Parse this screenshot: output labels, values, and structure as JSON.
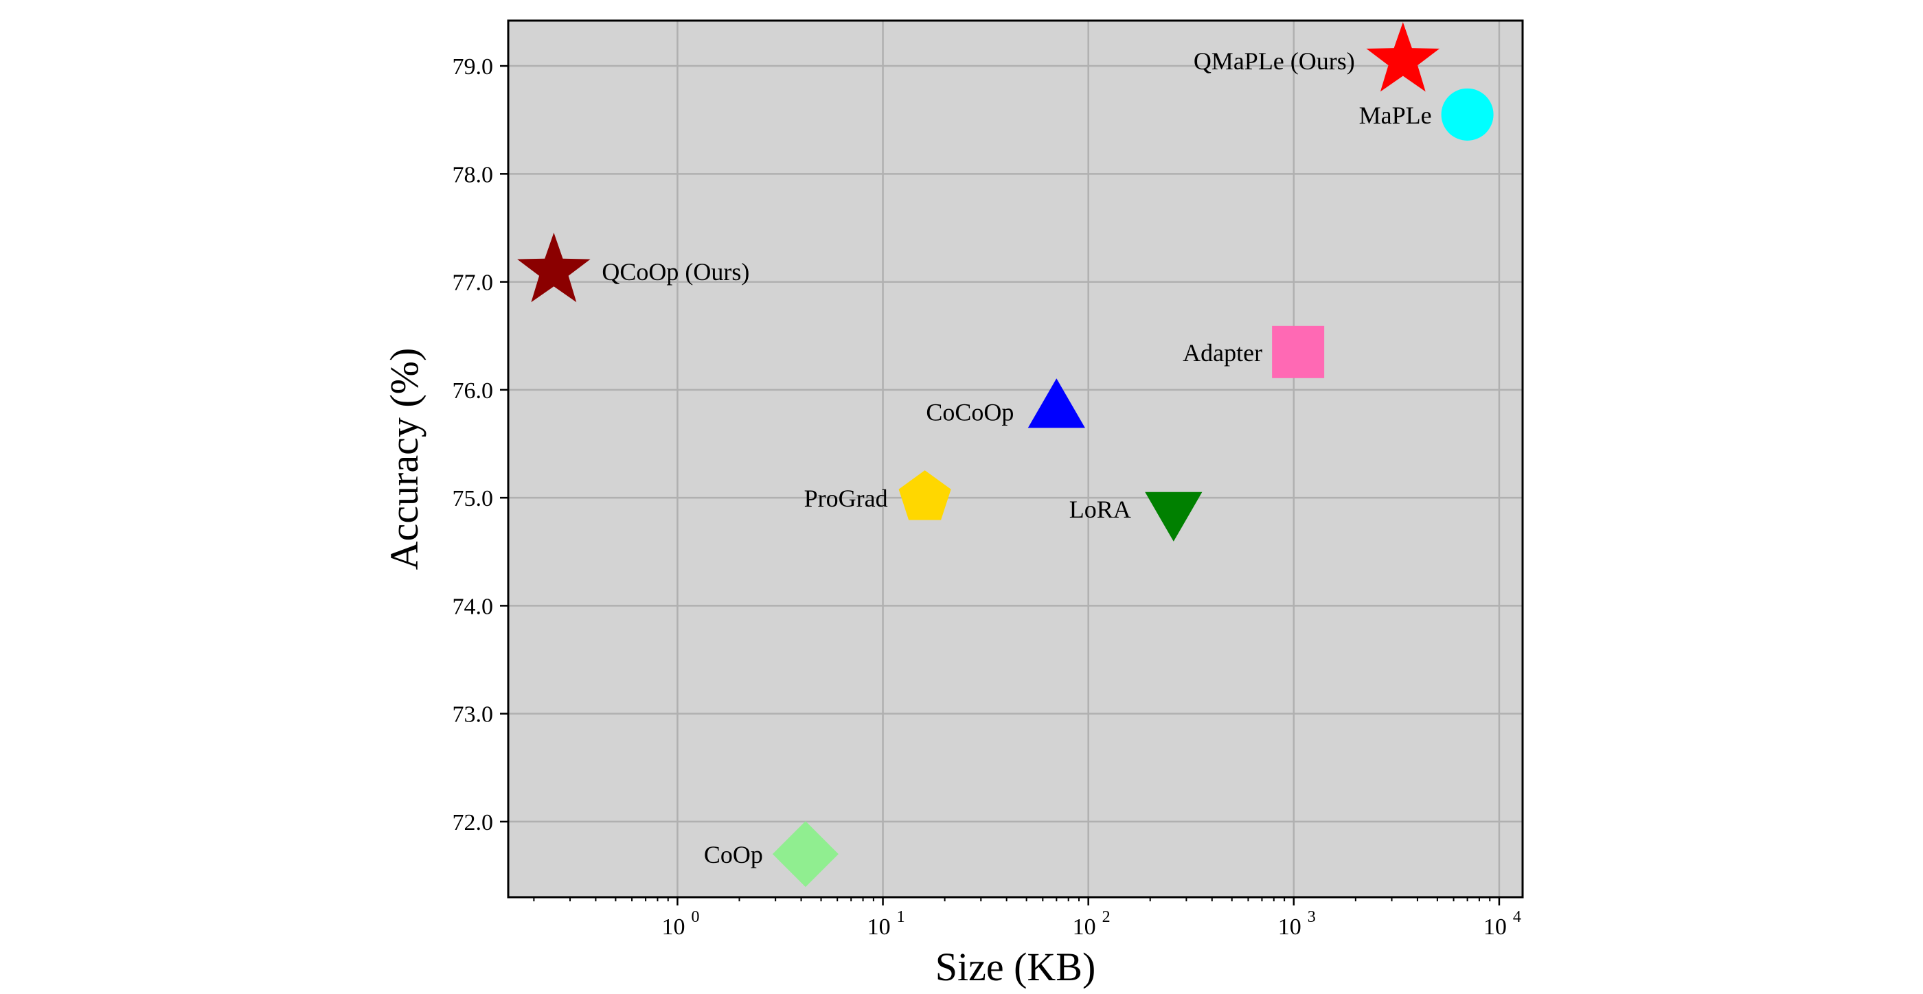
{
  "chart_data": {
    "type": "scatter",
    "title": "",
    "xlabel": "Size (KB)",
    "ylabel": "Accuracy (%)",
    "xscale": "log",
    "xlim": [
      0.15,
      13000
    ],
    "ylim": [
      71.3,
      79.42
    ],
    "x_ticks": [
      {
        "base": "10",
        "exp": "0",
        "value": 1
      },
      {
        "base": "10",
        "exp": "1",
        "value": 10
      },
      {
        "base": "10",
        "exp": "2",
        "value": 100
      },
      {
        "base": "10",
        "exp": "3",
        "value": 1000
      },
      {
        "base": "10",
        "exp": "4",
        "value": 10000
      }
    ],
    "y_ticks": [
      "72.0",
      "73.0",
      "74.0",
      "75.0",
      "76.0",
      "77.0",
      "78.0",
      "79.0"
    ],
    "grid": true,
    "background": "#d3d3d3",
    "points": [
      {
        "label": "QMaPLe (Ours)",
        "x": 3400,
        "y": 79.05,
        "marker": "star",
        "color": "#ff0000",
        "label_side": "left"
      },
      {
        "label": "MaPLe",
        "x": 7000,
        "y": 78.55,
        "marker": "circle",
        "color": "#00ffff",
        "label_side": "left"
      },
      {
        "label": "QCoOp (Ours)",
        "x": 0.25,
        "y": 77.1,
        "marker": "star",
        "color": "#8b0000",
        "label_side": "right"
      },
      {
        "label": "Adapter",
        "x": 1050,
        "y": 76.35,
        "marker": "square",
        "color": "#ff69b4",
        "label_side": "left"
      },
      {
        "label": "CoCoOp",
        "x": 70,
        "y": 75.8,
        "marker": "triangle-up",
        "color": "#0000ff",
        "label_side": "left"
      },
      {
        "label": "ProGrad",
        "x": 16,
        "y": 75.0,
        "marker": "pentagon",
        "color": "#ffd700",
        "label_side": "left"
      },
      {
        "label": "LoRA",
        "x": 260,
        "y": 74.9,
        "marker": "triangle-down",
        "color": "#008000",
        "label_side": "left"
      },
      {
        "label": "CoOp",
        "x": 4.2,
        "y": 71.7,
        "marker": "diamond",
        "color": "#90ee90",
        "label_side": "left"
      }
    ]
  }
}
